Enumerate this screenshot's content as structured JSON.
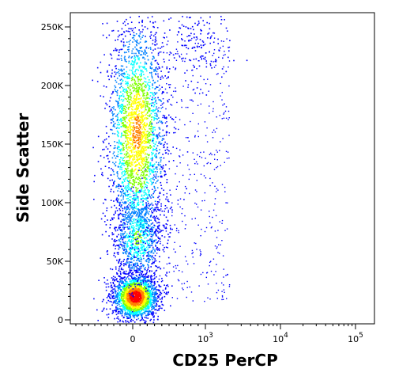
{
  "chart_data": {
    "type": "scatter",
    "xlabel": "CD25 PerCP",
    "ylabel": "Side Scatter",
    "x_scale": "biexponential",
    "x_tick_labels": [
      {
        "value": 0,
        "label": "0"
      },
      {
        "value": 1000,
        "base": "10",
        "exp": "3"
      },
      {
        "value": 10000,
        "base": "10",
        "exp": "4"
      },
      {
        "value": 100000,
        "base": "10",
        "exp": "5"
      }
    ],
    "y_tick_labels": [
      {
        "value": 0,
        "label": "0"
      },
      {
        "value": 50000,
        "label": "50K"
      },
      {
        "value": 100000,
        "label": "100K"
      },
      {
        "value": 150000,
        "label": "150K"
      },
      {
        "value": 200000,
        "label": "200K"
      },
      {
        "value": 250000,
        "label": "250K"
      }
    ],
    "ylim": [
      0,
      262144
    ],
    "grid": false,
    "legend": "none",
    "colormap": [
      "#0000ff",
      "#0080ff",
      "#00ffff",
      "#80ff00",
      "#ffff00",
      "#ff8000",
      "#ff0000"
    ],
    "populations": [
      {
        "x_center": 30,
        "y_center": 20000,
        "relative_density": 1.0
      },
      {
        "x_center": 60,
        "y_center": 70000,
        "relative_density": 0.45
      },
      {
        "x_center": 50,
        "y_center": 160000,
        "relative_density": 0.75
      },
      {
        "x_center": 900,
        "y_center": 240000,
        "relative_density": 0.12
      }
    ]
  }
}
